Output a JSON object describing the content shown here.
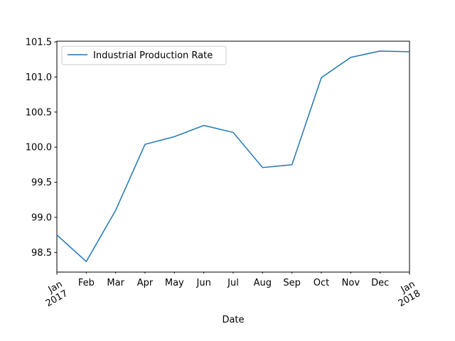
{
  "chart_data": {
    "type": "line",
    "xlabel": "Date",
    "ylabel": "",
    "x": [
      "2017-01",
      "2017-02",
      "2017-03",
      "2017-04",
      "2017-05",
      "2017-06",
      "2017-07",
      "2017-08",
      "2017-09",
      "2017-10",
      "2017-11",
      "2017-12",
      "2018-01"
    ],
    "x_tick_labels": [
      {
        "line1": "Jan",
        "line2": "2017",
        "rotated": true
      },
      {
        "line1": "Feb",
        "line2": "",
        "rotated": false
      },
      {
        "line1": "Mar",
        "line2": "",
        "rotated": false
      },
      {
        "line1": "Apr",
        "line2": "",
        "rotated": false
      },
      {
        "line1": "May",
        "line2": "",
        "rotated": false
      },
      {
        "line1": "Jun",
        "line2": "",
        "rotated": false
      },
      {
        "line1": "Jul",
        "line2": "",
        "rotated": false
      },
      {
        "line1": "Aug",
        "line2": "",
        "rotated": false
      },
      {
        "line1": "Sep",
        "line2": "",
        "rotated": false
      },
      {
        "line1": "Oct",
        "line2": "",
        "rotated": false
      },
      {
        "line1": "Nov",
        "line2": "",
        "rotated": false
      },
      {
        "line1": "Dec",
        "line2": "",
        "rotated": false
      },
      {
        "line1": "Jan",
        "line2": "2018",
        "rotated": true
      }
    ],
    "series": [
      {
        "name": "Industrial Production Rate",
        "color": "#1f77b4",
        "values": [
          98.75,
          98.37,
          99.1,
          100.04,
          100.15,
          100.31,
          100.21,
          99.71,
          99.75,
          100.99,
          101.28,
          101.37,
          101.36
        ]
      }
    ],
    "ylim": [
      98.22,
      101.51
    ],
    "y_ticks": [
      98.5,
      99.0,
      99.5,
      100.0,
      100.5,
      101.0,
      101.5
    ],
    "y_tick_labels": [
      "98.5",
      "99.0",
      "99.5",
      "100.0",
      "100.5",
      "101.0",
      "101.5"
    ],
    "grid": false,
    "legend_position": "upper-left"
  }
}
